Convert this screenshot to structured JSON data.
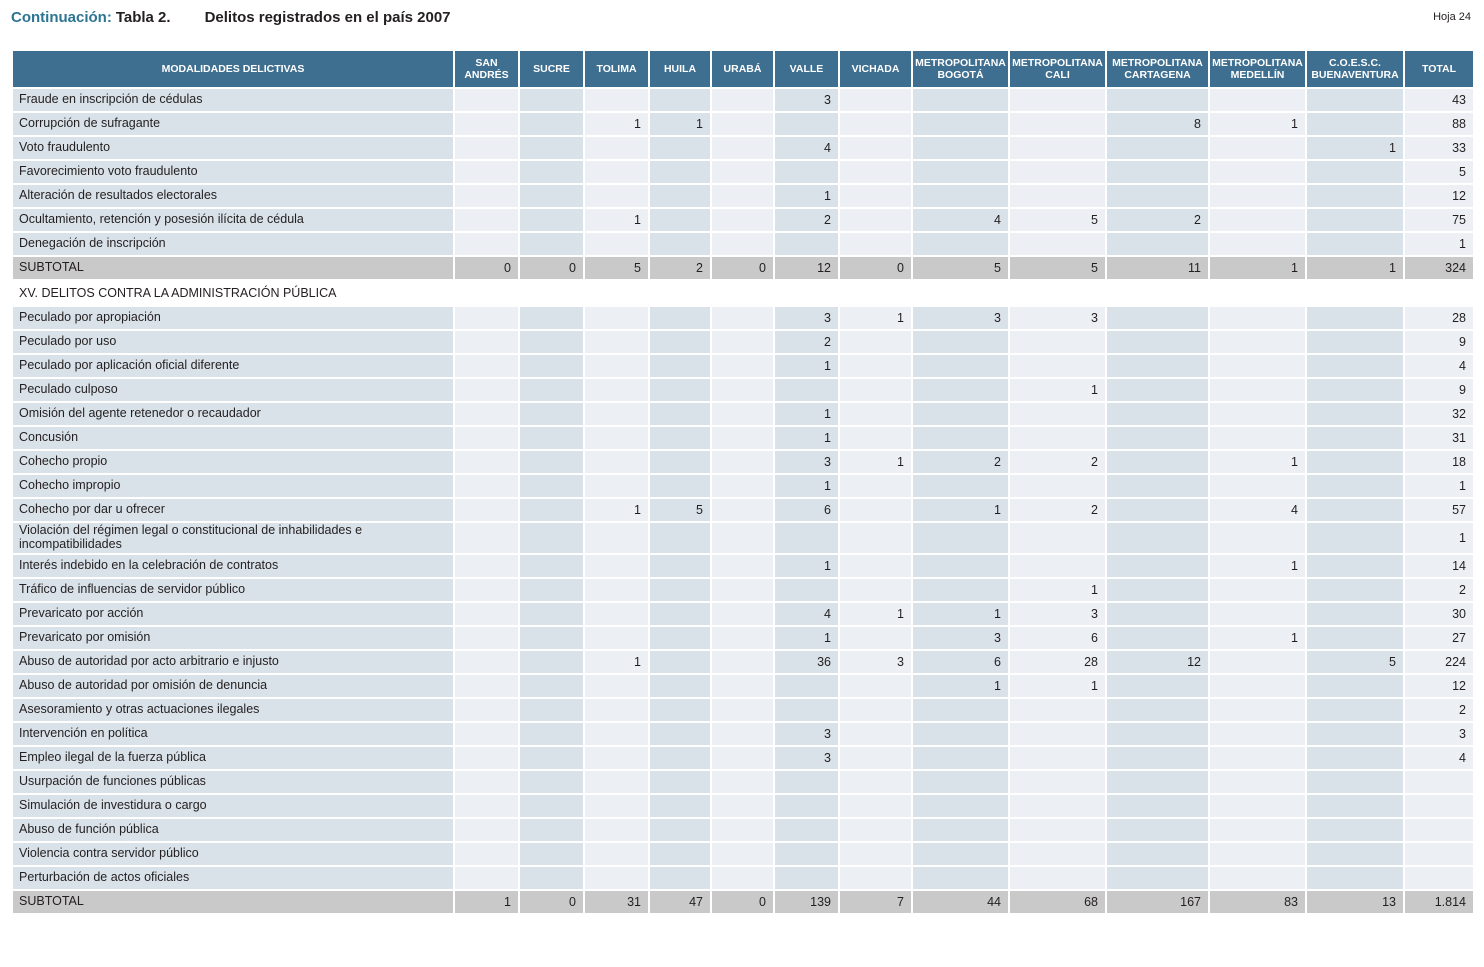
{
  "page": {
    "title_prefix": "Continuación:",
    "title_tabla": "Tabla 2.",
    "title_text": "Delitos registrados en el país 2007",
    "sheet_label": "Hoja 24"
  },
  "colors": {
    "header_bg": "#3e6f90",
    "header_text": "#ffffff",
    "column_stripe_dark": "#d9e2e9",
    "column_stripe_light": "#ecf0f4",
    "subtotal_bg": "#c9c9c9",
    "title_accent": "#2c7492",
    "body_text": "#231f20"
  },
  "table": {
    "columns": [
      "MODALIDADES DELICTIVAS",
      "SAN ANDRÉS",
      "SUCRE",
      "TOLIMA",
      "HUILA",
      "URABÁ",
      "VALLE",
      "VICHADA",
      "METROPOLITANA BOGOTÁ",
      "METROPOLITANA CALI",
      "METROPOLITANA CARTAGENA",
      "METROPOLITANA MEDELLÍN",
      "C.O.E.S.C. BUENAVENTURA",
      "TOTAL"
    ],
    "sections": [
      {
        "header": null,
        "rows": [
          {
            "type": "data",
            "label": "Fraude en inscripción de cédulas",
            "values": [
              "",
              "",
              "",
              "",
              "",
              "3",
              "",
              "",
              "",
              "",
              "",
              "",
              "43"
            ]
          },
          {
            "type": "data",
            "label": "Corrupción de sufragante",
            "values": [
              "",
              "",
              "1",
              "1",
              "",
              "",
              "",
              "",
              "",
              "8",
              "1",
              "",
              "88"
            ]
          },
          {
            "type": "data",
            "label": "Voto fraudulento",
            "values": [
              "",
              "",
              "",
              "",
              "",
              "4",
              "",
              "",
              "",
              "",
              "",
              "1",
              "33"
            ]
          },
          {
            "type": "data",
            "label": "Favorecimiento voto fraudulento",
            "values": [
              "",
              "",
              "",
              "",
              "",
              "",
              "",
              "",
              "",
              "",
              "",
              "",
              "5"
            ]
          },
          {
            "type": "data",
            "label": "Alteración de resultados electorales",
            "values": [
              "",
              "",
              "",
              "",
              "",
              "1",
              "",
              "",
              "",
              "",
              "",
              "",
              "12"
            ]
          },
          {
            "type": "data",
            "label": "Ocultamiento, retención y posesión ilícita de cédula",
            "values": [
              "",
              "",
              "1",
              "",
              "",
              "2",
              "",
              "4",
              "5",
              "2",
              "",
              "",
              "75"
            ]
          },
          {
            "type": "data",
            "label": "Denegación de inscripción",
            "values": [
              "",
              "",
              "",
              "",
              "",
              "",
              "",
              "",
              "",
              "",
              "",
              "",
              "1"
            ]
          },
          {
            "type": "subtotal",
            "label": "SUBTOTAL",
            "values": [
              "0",
              "0",
              "5",
              "2",
              "0",
              "12",
              "0",
              "5",
              "5",
              "11",
              "1",
              "1",
              "324"
            ]
          }
        ]
      },
      {
        "header": "XV. DELITOS CONTRA LA ADMINISTRACIÓN PÚBLICA",
        "rows": [
          {
            "type": "data",
            "label": "Peculado por apropiación",
            "values": [
              "",
              "",
              "",
              "",
              "",
              "3",
              "1",
              "3",
              "3",
              "",
              "",
              "",
              "28"
            ]
          },
          {
            "type": "data",
            "label": "Peculado por uso",
            "values": [
              "",
              "",
              "",
              "",
              "",
              "2",
              "",
              "",
              "",
              "",
              "",
              "",
              "9"
            ]
          },
          {
            "type": "data",
            "label": "Peculado por aplicación oficial diferente",
            "values": [
              "",
              "",
              "",
              "",
              "",
              "1",
              "",
              "",
              "",
              "",
              "",
              "",
              "4"
            ]
          },
          {
            "type": "data",
            "label": "Peculado culposo",
            "values": [
              "",
              "",
              "",
              "",
              "",
              "",
              "",
              "",
              "1",
              "",
              "",
              "",
              "9"
            ]
          },
          {
            "type": "data",
            "label": "Omisión del agente retenedor o recaudador",
            "values": [
              "",
              "",
              "",
              "",
              "",
              "1",
              "",
              "",
              "",
              "",
              "",
              "",
              "32"
            ]
          },
          {
            "type": "data",
            "label": "Concusión",
            "values": [
              "",
              "",
              "",
              "",
              "",
              "1",
              "",
              "",
              "",
              "",
              "",
              "",
              "31"
            ]
          },
          {
            "type": "data",
            "label": "Cohecho propio",
            "values": [
              "",
              "",
              "",
              "",
              "",
              "3",
              "1",
              "2",
              "2",
              "",
              "1",
              "",
              "18"
            ]
          },
          {
            "type": "data",
            "label": "Cohecho impropio",
            "values": [
              "",
              "",
              "",
              "",
              "",
              "1",
              "",
              "",
              "",
              "",
              "",
              "",
              "1"
            ]
          },
          {
            "type": "data",
            "label": "Cohecho por dar u ofrecer",
            "values": [
              "",
              "",
              "1",
              "5",
              "",
              "6",
              "",
              "1",
              "2",
              "",
              "4",
              "",
              "57"
            ]
          },
          {
            "type": "data",
            "label": "Violación del régimen legal o constitucional de inhabilidades e incompatibilidades",
            "values": [
              "",
              "",
              "",
              "",
              "",
              "",
              "",
              "",
              "",
              "",
              "",
              "",
              "1"
            ]
          },
          {
            "type": "data",
            "label": "Interés indebido en la celebración de contratos",
            "values": [
              "",
              "",
              "",
              "",
              "",
              "1",
              "",
              "",
              "",
              "",
              "1",
              "",
              "14"
            ]
          },
          {
            "type": "data",
            "label": "Tráfico de influencias de servidor público",
            "values": [
              "",
              "",
              "",
              "",
              "",
              "",
              "",
              "",
              "1",
              "",
              "",
              "",
              "2"
            ]
          },
          {
            "type": "data",
            "label": "Prevaricato por acción",
            "values": [
              "",
              "",
              "",
              "",
              "",
              "4",
              "1",
              "1",
              "3",
              "",
              "",
              "",
              "30"
            ]
          },
          {
            "type": "data",
            "label": "Prevaricato por omisión",
            "values": [
              "",
              "",
              "",
              "",
              "",
              "1",
              "",
              "3",
              "6",
              "",
              "1",
              "",
              "27"
            ]
          },
          {
            "type": "data",
            "label": "Abuso de autoridad por acto arbitrario e injusto",
            "values": [
              "",
              "",
              "1",
              "",
              "",
              "36",
              "3",
              "6",
              "28",
              "12",
              "",
              "5",
              "224"
            ]
          },
          {
            "type": "data",
            "label": "Abuso de autoridad por omisión de denuncia",
            "values": [
              "",
              "",
              "",
              "",
              "",
              "",
              "",
              "1",
              "1",
              "",
              "",
              "",
              "12"
            ]
          },
          {
            "type": "data",
            "label": "Asesoramiento y otras actuaciones ilegales",
            "values": [
              "",
              "",
              "",
              "",
              "",
              "",
              "",
              "",
              "",
              "",
              "",
              "",
              "2"
            ]
          },
          {
            "type": "data",
            "label": "Intervención en política",
            "values": [
              "",
              "",
              "",
              "",
              "",
              "3",
              "",
              "",
              "",
              "",
              "",
              "",
              "3"
            ]
          },
          {
            "type": "data",
            "label": "Empleo ilegal de la fuerza pública",
            "values": [
              "",
              "",
              "",
              "",
              "",
              "3",
              "",
              "",
              "",
              "",
              "",
              "",
              "4"
            ]
          },
          {
            "type": "data",
            "label": "Usurpación de funciones públicas",
            "values": [
              "",
              "",
              "",
              "",
              "",
              "",
              "",
              "",
              "",
              "",
              "",
              "",
              ""
            ]
          },
          {
            "type": "data",
            "label": "Simulación de investidura o cargo",
            "values": [
              "",
              "",
              "",
              "",
              "",
              "",
              "",
              "",
              "",
              "",
              "",
              "",
              ""
            ]
          },
          {
            "type": "data",
            "label": "Abuso de función pública",
            "values": [
              "",
              "",
              "",
              "",
              "",
              "",
              "",
              "",
              "",
              "",
              "",
              "",
              ""
            ]
          },
          {
            "type": "data",
            "label": "Violencia contra servidor público",
            "values": [
              "",
              "",
              "",
              "",
              "",
              "",
              "",
              "",
              "",
              "",
              "",
              "",
              ""
            ]
          },
          {
            "type": "data",
            "label": "Perturbación de actos oficiales",
            "values": [
              "",
              "",
              "",
              "",
              "",
              "",
              "",
              "",
              "",
              "",
              "",
              "",
              ""
            ]
          },
          {
            "type": "subtotal",
            "label": "SUBTOTAL",
            "values": [
              "1",
              "0",
              "31",
              "47",
              "0",
              "139",
              "7",
              "44",
              "68",
              "167",
              "83",
              "13",
              "1.814"
            ]
          }
        ]
      }
    ]
  }
}
